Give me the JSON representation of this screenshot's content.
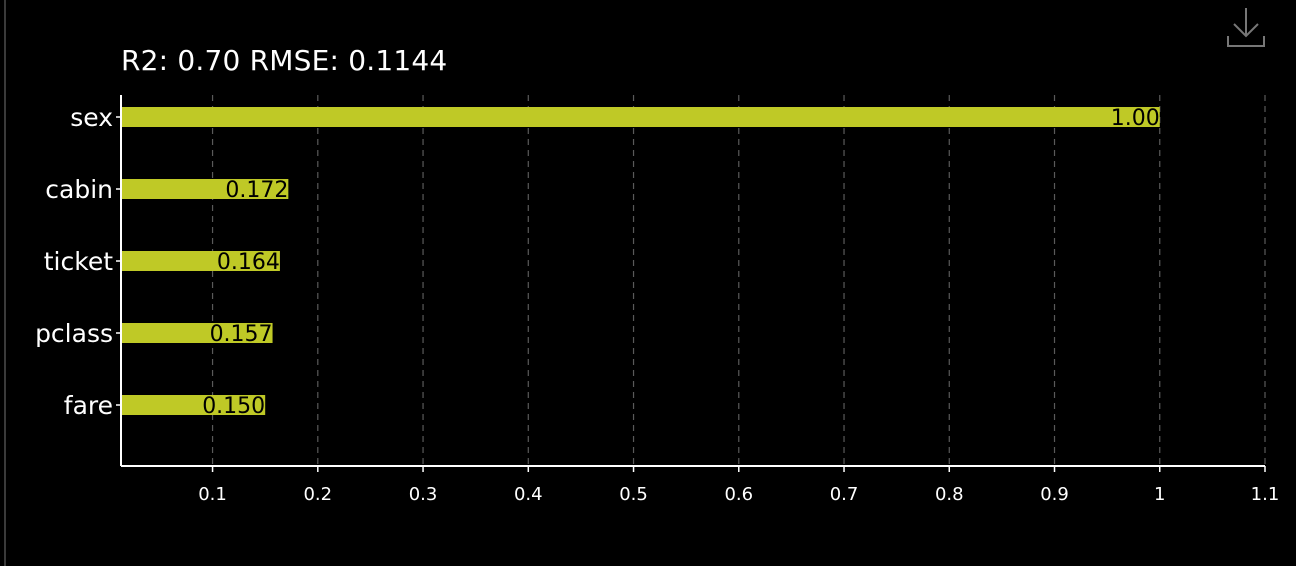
{
  "colors": {
    "background": "#000000",
    "bar": "#bfc926",
    "grid": "#5a5a5a",
    "axis": "#ffffff",
    "data_label": "#000000"
  },
  "toolbar": {
    "download_icon": "download-icon"
  },
  "chart_data": {
    "type": "bar",
    "orientation": "horizontal",
    "title": "R2: 0.70 RMSE: 0.1144",
    "categories": [
      "sex",
      "cabin",
      "ticket",
      "pclass",
      "fare"
    ],
    "values": [
      1.0,
      0.172,
      0.164,
      0.157,
      0.15
    ],
    "value_labels": [
      "1.00",
      "0.172",
      "0.164",
      "0.157",
      "0.150"
    ],
    "xlim": [
      0.013,
      1.1
    ],
    "xticks": [
      0.1,
      0.2,
      0.3,
      0.4,
      0.5,
      0.6,
      0.7,
      0.8,
      0.9,
      1.0,
      1.1
    ],
    "xtick_labels": [
      "0.1",
      "0.2",
      "0.3",
      "0.4",
      "0.5",
      "0.6",
      "0.7",
      "0.8",
      "0.9",
      "1",
      "1.1"
    ],
    "grid": "vertical dashed",
    "legend": "none"
  }
}
